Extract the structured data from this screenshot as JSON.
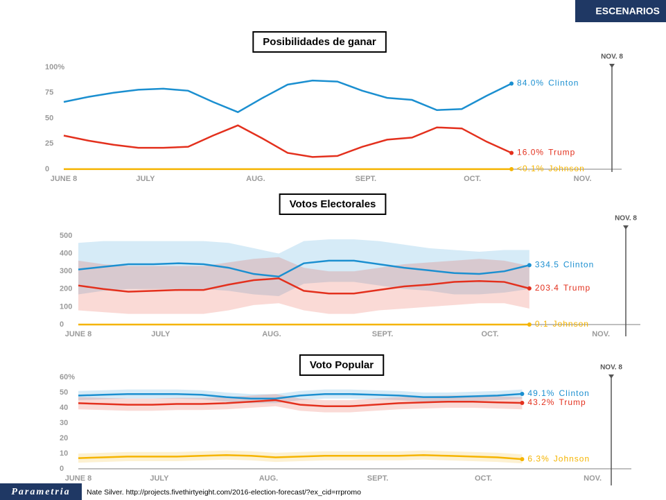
{
  "header": {
    "title": "ESCENARIOS"
  },
  "footer": {
    "logo": "Parametria",
    "source": "Nate Silver. http://projects.fivethirtyeight.com/2016-election-forecast/?ex_cid=rrpromo"
  },
  "chart_data": [
    {
      "type": "line",
      "title": "Posibilidades de ganar",
      "annotation": "NOV. 8",
      "x": [
        0,
        7,
        14,
        21,
        28,
        35,
        42,
        49,
        56,
        63,
        70,
        77,
        84,
        91,
        98,
        105,
        112,
        119,
        126
      ],
      "xlim": [
        0,
        157
      ],
      "xticks": [
        {
          "value": 0,
          "label": "JUNE 8"
        },
        {
          "value": 23,
          "label": "JULY"
        },
        {
          "value": 54,
          "label": "AUG."
        },
        {
          "value": 85,
          "label": "SEPT."
        },
        {
          "value": 115,
          "label": "OCT."
        },
        {
          "value": 146,
          "label": "NOV."
        }
      ],
      "ylim": [
        0,
        100
      ],
      "yticks": [
        0,
        25,
        50,
        75,
        {
          "value": 100,
          "label": "100%"
        }
      ],
      "series": [
        {
          "name": "Clinton",
          "color": "#1b8fd0",
          "values": [
            66,
            71,
            75,
            78,
            79,
            77,
            66,
            56,
            70,
            83,
            87,
            86,
            77,
            70,
            68,
            58,
            59,
            72,
            84.0
          ],
          "value_labels": [
            null,
            null,
            null,
            null,
            null,
            null,
            null,
            null,
            null,
            null,
            null,
            null,
            null,
            null,
            null,
            null,
            null,
            null,
            "84.0%"
          ]
        },
        {
          "name": "Trump",
          "color": "#e3301d",
          "values": [
            33,
            28,
            24,
            21,
            21,
            22,
            33,
            43,
            30,
            16,
            12,
            13,
            22,
            29,
            31,
            41,
            40,
            27,
            16.0
          ],
          "value_labels": [
            null,
            null,
            null,
            null,
            null,
            null,
            null,
            null,
            null,
            null,
            null,
            null,
            null,
            null,
            null,
            null,
            null,
            null,
            "16.0%"
          ]
        },
        {
          "name": "Johnson",
          "color": "#f5b400",
          "values": [
            0.1,
            0.1,
            0.1,
            0.1,
            0.1,
            0.1,
            0.1,
            0.1,
            0.1,
            0.1,
            0.1,
            0.1,
            0.1,
            0.1,
            0.1,
            0.1,
            0.1,
            0.1,
            0.1
          ],
          "value_labels": [
            null,
            null,
            null,
            null,
            null,
            null,
            null,
            null,
            null,
            null,
            null,
            null,
            null,
            null,
            null,
            null,
            null,
            null,
            "<0.1%"
          ]
        }
      ]
    },
    {
      "type": "line",
      "title": "Votos Electorales",
      "annotation": "NOV. 8",
      "x": [
        0,
        7,
        14,
        21,
        28,
        35,
        42,
        49,
        56,
        63,
        70,
        77,
        84,
        91,
        98,
        105,
        112,
        119,
        126
      ],
      "xlim": [
        0,
        157
      ],
      "xticks": [
        {
          "value": 0,
          "label": "JUNE 8"
        },
        {
          "value": 23,
          "label": "JULY"
        },
        {
          "value": 54,
          "label": "AUG."
        },
        {
          "value": 85,
          "label": "SEPT."
        },
        {
          "value": 115,
          "label": "OCT."
        },
        {
          "value": 146,
          "label": "NOV."
        }
      ],
      "ylim": [
        0,
        500
      ],
      "yticks": [
        0,
        100,
        200,
        300,
        400,
        500
      ],
      "series": [
        {
          "name": "Clinton",
          "color": "#1b8fd0",
          "values": [
            310,
            325,
            340,
            340,
            345,
            340,
            320,
            285,
            270,
            345,
            360,
            360,
            340,
            320,
            305,
            290,
            285,
            300,
            334.5
          ],
          "upper": [
            460,
            470,
            470,
            470,
            470,
            470,
            460,
            430,
            400,
            470,
            480,
            480,
            470,
            450,
            430,
            420,
            410,
            420,
            420
          ],
          "lower": [
            170,
            190,
            200,
            200,
            200,
            200,
            190,
            170,
            160,
            230,
            240,
            240,
            220,
            200,
            190,
            170,
            170,
            180,
            200
          ]
        },
        {
          "name": "Trump",
          "color": "#e3301d",
          "values": [
            220,
            200,
            185,
            190,
            195,
            195,
            225,
            250,
            260,
            190,
            175,
            175,
            195,
            215,
            225,
            240,
            245,
            240,
            203.4
          ],
          "upper": [
            360,
            340,
            330,
            330,
            330,
            330,
            350,
            370,
            380,
            320,
            300,
            300,
            320,
            340,
            350,
            360,
            370,
            360,
            330
          ],
          "lower": [
            80,
            70,
            60,
            60,
            60,
            60,
            80,
            110,
            120,
            80,
            60,
            60,
            80,
            90,
            100,
            110,
            120,
            120,
            90
          ]
        },
        {
          "name": "Johnson",
          "color": "#f5b400",
          "values": [
            0.1,
            0.1,
            0.1,
            0.1,
            0.1,
            0.1,
            0.1,
            0.1,
            0.1,
            0.1,
            0.1,
            0.1,
            0.1,
            0.1,
            0.1,
            0.1,
            0.1,
            0.1,
            0.1
          ]
        }
      ]
    },
    {
      "type": "line",
      "title": "Voto Popular",
      "annotation": "NOV. 8",
      "x": [
        0,
        7,
        14,
        21,
        28,
        35,
        42,
        49,
        56,
        63,
        70,
        77,
        84,
        91,
        98,
        105,
        112,
        119,
        126
      ],
      "xlim": [
        0,
        157
      ],
      "xticks": [
        {
          "value": 0,
          "label": "JUNE 8"
        },
        {
          "value": 23,
          "label": "JULY"
        },
        {
          "value": 54,
          "label": "AUG."
        },
        {
          "value": 85,
          "label": "SEPT."
        },
        {
          "value": 115,
          "label": "OCT."
        },
        {
          "value": 146,
          "label": "NOV."
        }
      ],
      "ylim": [
        0,
        60
      ],
      "yticks": [
        0,
        10,
        20,
        30,
        40,
        50,
        {
          "value": 60,
          "label": "60%"
        }
      ],
      "series": [
        {
          "name": "Clinton",
          "color": "#1b8fd0",
          "values": [
            48,
            48.5,
            49,
            49,
            49,
            48.5,
            47,
            46,
            46,
            48,
            49,
            49,
            48.5,
            48,
            47,
            47,
            47.5,
            48,
            49.1
          ],
          "upper": [
            51,
            51.5,
            52,
            52,
            52,
            51.5,
            50,
            49,
            49,
            51,
            52,
            52,
            51.5,
            51,
            50,
            50,
            50.5,
            51,
            52
          ],
          "lower": [
            45,
            45.5,
            46,
            46,
            46,
            45.5,
            44,
            43,
            43,
            45,
            46,
            46,
            45.5,
            45,
            44,
            44,
            44.5,
            45,
            46
          ],
          "value_labels": [
            null,
            null,
            null,
            null,
            null,
            null,
            null,
            null,
            null,
            null,
            null,
            null,
            null,
            null,
            null,
            null,
            null,
            null,
            "49.1%"
          ]
        },
        {
          "name": "Trump",
          "color": "#e3301d",
          "values": [
            43,
            42.5,
            42,
            42,
            42.5,
            42.5,
            43,
            44,
            45,
            42,
            41,
            41,
            42,
            43,
            43.5,
            44,
            44,
            43.5,
            43.2
          ],
          "upper": [
            47,
            46.5,
            46,
            46,
            46.5,
            46.5,
            47,
            48,
            49,
            46,
            45,
            45,
            46,
            47,
            47.5,
            48,
            48,
            47.5,
            47
          ],
          "lower": [
            39,
            38.5,
            38,
            38,
            38.5,
            38.5,
            39,
            40,
            41,
            38,
            37,
            37,
            38,
            39,
            39.5,
            40,
            40,
            39.5,
            39
          ],
          "value_labels": [
            null,
            null,
            null,
            null,
            null,
            null,
            null,
            null,
            null,
            null,
            null,
            null,
            null,
            null,
            null,
            null,
            null,
            null,
            "43.2%"
          ]
        },
        {
          "name": "Johnson",
          "color": "#f5b400",
          "values": [
            7,
            7.5,
            8,
            8,
            8,
            8.5,
            9,
            8.5,
            7.5,
            8,
            8.5,
            8.5,
            8.5,
            8.5,
            9,
            8.5,
            8,
            7.5,
            6.3
          ],
          "upper": [
            10,
            10.5,
            11,
            11,
            11,
            11.5,
            12,
            11.5,
            10.5,
            11,
            11.5,
            11.5,
            11.5,
            11.5,
            12,
            11.5,
            11,
            10.5,
            9.5
          ],
          "lower": [
            4,
            4.5,
            5,
            5,
            5,
            5.5,
            6,
            5.5,
            4.5,
            5,
            5.5,
            5.5,
            5.5,
            5.5,
            6,
            5.5,
            5,
            4.5,
            3.5
          ],
          "value_labels": [
            null,
            null,
            null,
            null,
            null,
            null,
            null,
            null,
            null,
            null,
            null,
            null,
            null,
            null,
            null,
            null,
            null,
            null,
            "6.3%"
          ]
        }
      ]
    }
  ]
}
